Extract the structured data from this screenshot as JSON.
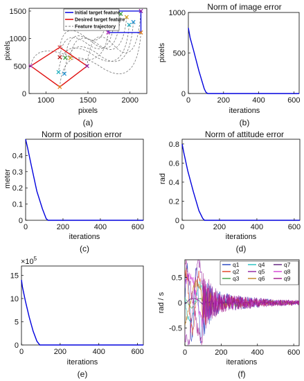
{
  "chart_data": [
    {
      "panel": "(a)",
      "type": "scatter",
      "title": "",
      "xlabel": "pixels",
      "ylabel": "pixels",
      "xlim": [
        800,
        2200
      ],
      "ylim": [
        0,
        1550
      ],
      "xticks": [
        1000,
        1500,
        2000
      ],
      "yticks": [
        0,
        500,
        1000,
        1500
      ],
      "legend_position": "top-right",
      "legend": [
        "Initial target feature",
        "Desired target feature",
        "Feature trajectory"
      ],
      "colors": {
        "initial": "#1010e0",
        "desired": "#e01010",
        "trajectory": "#777777"
      },
      "initial_square": [
        [
          1740,
          1500
        ],
        [
          2130,
          1500
        ],
        [
          2130,
          1110
        ],
        [
          1740,
          1110
        ]
      ],
      "desired_diamond": [
        [
          1165,
          840
        ],
        [
          1490,
          500
        ],
        [
          1165,
          120
        ],
        [
          820,
          500
        ]
      ],
      "markers": [
        {
          "x": 1740,
          "y": 1500,
          "color": "#e04040"
        },
        {
          "x": 1820,
          "y": 1400,
          "color": "#b01010"
        },
        {
          "x": 1890,
          "y": 1450,
          "color": "#3aa040"
        },
        {
          "x": 1960,
          "y": 1390,
          "color": "#d4a020"
        },
        {
          "x": 2040,
          "y": 1300,
          "color": "#2090d0"
        },
        {
          "x": 1990,
          "y": 1250,
          "color": "#20b0c0"
        },
        {
          "x": 2130,
          "y": 1500,
          "color": "#9020a0"
        },
        {
          "x": 1740,
          "y": 1110,
          "color": "#c040c0"
        },
        {
          "x": 2130,
          "y": 1110,
          "color": "#e08020"
        },
        {
          "x": 1165,
          "y": 840,
          "color": "#e04040"
        },
        {
          "x": 1165,
          "y": 660,
          "color": "#b01010"
        },
        {
          "x": 1230,
          "y": 650,
          "color": "#3aa040"
        },
        {
          "x": 1290,
          "y": 645,
          "color": "#d4a020"
        },
        {
          "x": 1220,
          "y": 360,
          "color": "#2090d0"
        },
        {
          "x": 1150,
          "y": 390,
          "color": "#20b0c0"
        },
        {
          "x": 1490,
          "y": 500,
          "color": "#9020a0"
        },
        {
          "x": 820,
          "y": 500,
          "color": "#c040c0"
        },
        {
          "x": 1165,
          "y": 120,
          "color": "#e08020"
        }
      ]
    },
    {
      "panel": "(b)",
      "type": "line",
      "title": "Norm of image error",
      "xlabel": "iterations",
      "ylabel": "pixels",
      "xlim": [
        0,
        630
      ],
      "ylim": [
        0,
        1000
      ],
      "xticks": [
        0,
        200,
        400,
        600
      ],
      "yticks": [
        0,
        500,
        1000
      ],
      "series": [
        {
          "color": "#0000dd",
          "x": [
            0,
            10,
            30,
            60,
            90,
            100,
            110,
            630
          ],
          "y": [
            810,
            690,
            530,
            280,
            60,
            15,
            0,
            0
          ]
        }
      ]
    },
    {
      "panel": "(c)",
      "type": "line",
      "title": "Norm of position error",
      "xlabel": "iterations",
      "ylabel": "meter",
      "xlim": [
        0,
        630
      ],
      "ylim": [
        0,
        0.5
      ],
      "xticks": [
        0,
        200,
        400,
        600
      ],
      "yticks": [
        0,
        0.1,
        0.2,
        0.3,
        0.4
      ],
      "series": [
        {
          "color": "#0000dd",
          "x": [
            0,
            10,
            30,
            60,
            90,
            110,
            120,
            630
          ],
          "y": [
            0.5,
            0.45,
            0.34,
            0.18,
            0.07,
            0.01,
            0,
            0
          ]
        }
      ]
    },
    {
      "panel": "(d)",
      "type": "line",
      "title": "Norm of attitude error",
      "xlabel": "iterations",
      "ylabel": "rad",
      "xlim": [
        0,
        630
      ],
      "ylim": [
        0,
        0.85
      ],
      "xticks": [
        0,
        200,
        400,
        600
      ],
      "yticks": [
        0,
        0.2,
        0.4,
        0.6,
        0.8
      ],
      "series": [
        {
          "color": "#0000dd",
          "x": [
            0,
            10,
            30,
            60,
            90,
            110,
            120,
            630
          ],
          "y": [
            0.8,
            0.7,
            0.52,
            0.3,
            0.1,
            0.02,
            0,
            0
          ]
        }
      ]
    },
    {
      "panel": "(e)",
      "type": "line",
      "title": "",
      "xlabel": "iterations",
      "ylabel": "",
      "exponent_label": "×10",
      "exponent_power": "5",
      "xlim": [
        0,
        630
      ],
      "ylim": [
        0,
        17
      ],
      "xticks": [
        0,
        200,
        400,
        600
      ],
      "yticks": [
        0,
        5,
        10,
        15
      ],
      "series": [
        {
          "color": "#0000dd",
          "x": [
            0,
            5,
            20,
            40,
            60,
            80,
            95,
            630
          ],
          "y": [
            14,
            12.5,
            9.5,
            6,
            3,
            0.8,
            0,
            0
          ]
        }
      ]
    },
    {
      "panel": "(f)",
      "type": "line",
      "title": "",
      "xlabel": "iterations",
      "ylabel": "rad / s",
      "xlim": [
        0,
        630
      ],
      "ylim": [
        -0.85,
        0.85
      ],
      "xticks": [
        0,
        200,
        400,
        600
      ],
      "yticks": [
        -0.5,
        0,
        0.5
      ],
      "legend_position": "top-right",
      "series": [
        {
          "name": "q1",
          "color": "#1f3fbf"
        },
        {
          "name": "q2",
          "color": "#e03a1a"
        },
        {
          "name": "q3",
          "color": "#3aa040"
        },
        {
          "name": "q4",
          "color": "#20c0c0"
        },
        {
          "name": "q5",
          "color": "#9020a0"
        },
        {
          "name": "q6",
          "color": "#c08020"
        },
        {
          "name": "q7",
          "color": "#5a1a7a"
        },
        {
          "name": "q8",
          "color": "#d43fd4"
        },
        {
          "name": "q9",
          "color": "#a0128a"
        }
      ],
      "envelope": {
        "x": [
          0,
          100,
          150,
          200,
          300,
          400,
          500,
          630
        ],
        "amp": [
          0.8,
          0.75,
          0.35,
          0.22,
          0.15,
          0.1,
          0.07,
          0.05
        ]
      }
    }
  ],
  "panel_labels": [
    "(a)",
    "(b)",
    "(c)",
    "(d)",
    "(e)",
    "(f)"
  ]
}
